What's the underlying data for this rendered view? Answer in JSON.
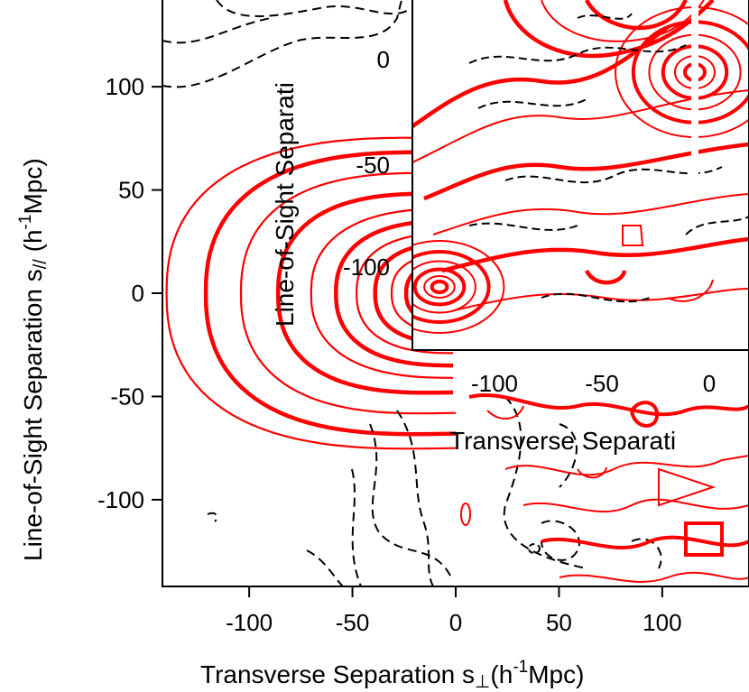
{
  "chart_data": [
    {
      "type": "contour",
      "panel": "main",
      "xlabel": "Transverse Separation s",
      "xlabel_sub": "⊥",
      "xlabel_unit": "(h",
      "xlabel_unit_sup": "-1",
      "xlabel_unit_end": "Mpc)",
      "ylabel": "Line-of-Sight Separation s",
      "ylabel_sub": "//",
      "ylabel_unit": " (h",
      "ylabel_unit_sup": "-1",
      "ylabel_unit_end": "Mpc)",
      "xlim": [
        -142,
        142
      ],
      "ylim": [
        -142,
        142
      ],
      "x_ticks": [
        -100,
        -50,
        0,
        50,
        100
      ],
      "x_tick_labels": [
        "-100",
        "-50",
        "0",
        "50",
        "100"
      ],
      "y_ticks": [
        -100,
        -50,
        0,
        50,
        100
      ],
      "y_tick_labels": [
        "-100",
        "-50",
        "0",
        "50",
        "100"
      ],
      "positive_contour_color": "#ff0000",
      "negative_contour_color": "#000000",
      "negative_contour_style": "dashed",
      "center": [
        0,
        0
      ],
      "contour_half_widths": [
        140,
        121,
        104,
        86,
        70,
        58,
        48,
        39,
        31,
        24,
        17,
        11,
        6
      ],
      "contour_half_heights": [
        75,
        68,
        58,
        48,
        41,
        35,
        29,
        24,
        19,
        15,
        11,
        7,
        4
      ],
      "thick_every": 2
    },
    {
      "type": "contour",
      "panel": "inset",
      "xlabel": "Transverse Separati",
      "ylabel": "Line-of-Sight Separati",
      "x_tick_labels": [
        "-100",
        "-50",
        "0"
      ],
      "y_tick_labels": [
        "-100",
        "-50",
        "0"
      ],
      "positive_contour_color": "#ff0000",
      "negative_contour_color": "#000000"
    }
  ]
}
